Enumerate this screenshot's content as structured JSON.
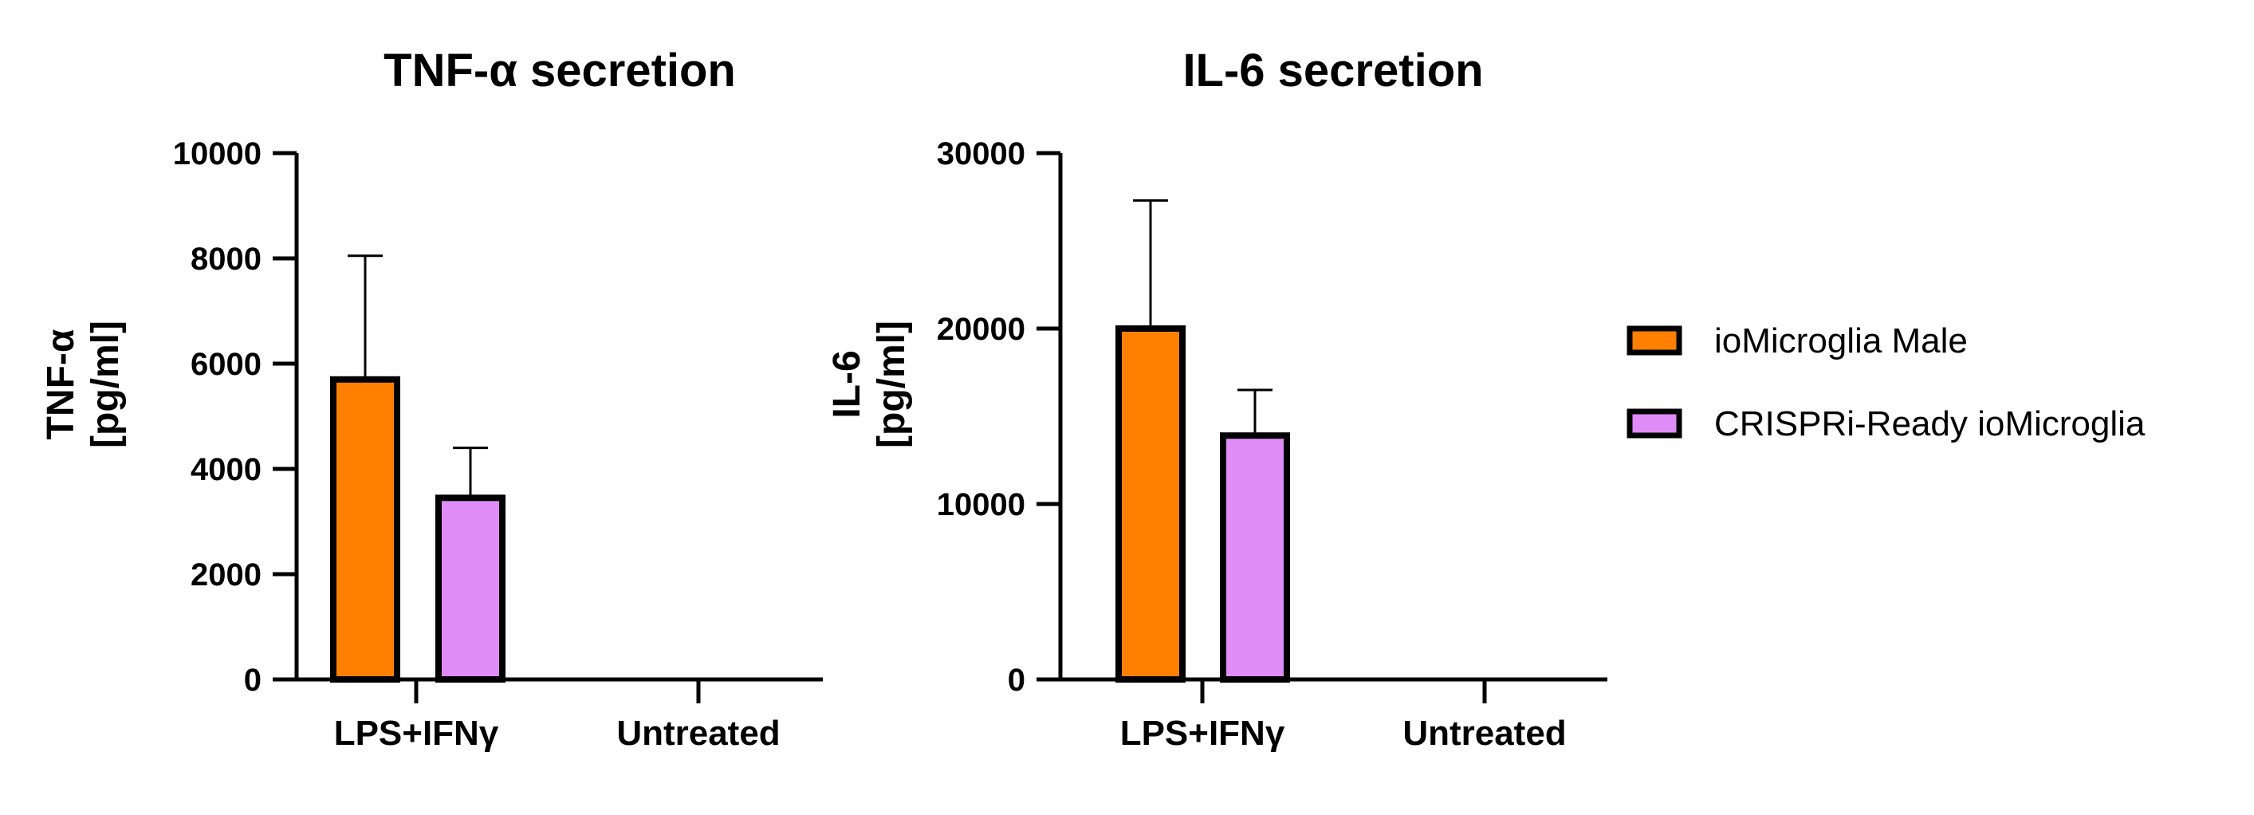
{
  "colors": {
    "ioMicroglia Male": "#ff8000",
    "CRISPRi-Ready ioMicroglia": "#df8cf7",
    "axis": "#000000"
  },
  "legend": {
    "placement": "right",
    "items": [
      "ioMicroglia Male",
      "CRISPRi-Ready ioMicroglia"
    ]
  },
  "chart_data": [
    {
      "type": "bar",
      "title": "TNF-α secretion",
      "ylabel": [
        "TNF-α",
        "[pg/ml]"
      ],
      "xlabel": "",
      "categories": [
        "LPS+IFNγ",
        "Untreated"
      ],
      "ylim": [
        0,
        10000
      ],
      "yticks": [
        0,
        2000,
        4000,
        6000,
        8000,
        10000
      ],
      "grid": false,
      "series": [
        {
          "name": "ioMicroglia Male",
          "values": [
            5700,
            0
          ],
          "error": [
            2350,
            0
          ]
        },
        {
          "name": "CRISPRi-Ready ioMicroglia",
          "values": [
            3450,
            0
          ],
          "error": [
            950,
            0
          ]
        }
      ]
    },
    {
      "type": "bar",
      "title": "IL-6 secretion",
      "ylabel": [
        "IL-6",
        "[pg/ml]"
      ],
      "xlabel": "",
      "categories": [
        "LPS+IFNγ",
        "Untreated"
      ],
      "ylim": [
        0,
        30000
      ],
      "yticks": [
        0,
        10000,
        20000,
        30000
      ],
      "grid": false,
      "series": [
        {
          "name": "ioMicroglia Male",
          "values": [
            20000,
            0
          ],
          "error": [
            7300,
            0
          ]
        },
        {
          "name": "CRISPRi-Ready ioMicroglia",
          "values": [
            13900,
            0
          ],
          "error": [
            2600,
            0
          ]
        }
      ]
    }
  ]
}
